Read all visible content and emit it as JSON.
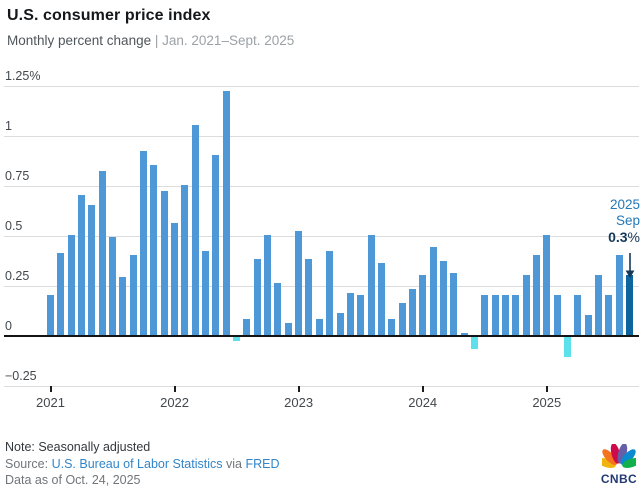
{
  "header": {
    "title": "U.S. consumer price index",
    "subtitle_main": "Monthly percent change",
    "subtitle_sep": "|",
    "subtitle_range": "Jan. 2021–Sept. 2025"
  },
  "annotation": {
    "line1": "2025",
    "line2": "Sep",
    "value": "0.3",
    "value_suffix": "%"
  },
  "footer": {
    "note": "Note: Seasonally adjusted",
    "source_prefix": "Source:",
    "source_link": "U.S. Bureau of Labor Statistics",
    "source_via": "via",
    "source_link2": "FRED",
    "data_as_of": "Data as of Oct. 24, 2025"
  },
  "logo": {
    "text": "CNBC",
    "icon": "nbc-peacock-icon"
  },
  "colors": {
    "bar": "#4f98d8",
    "bar_negative": "#5ce0eb",
    "bar_highlight": "#0e649f",
    "annotation_blue": "#2478b8",
    "annotation_dark": "#15395a",
    "link_blue": "#3286c8",
    "grid": "#dadcdd",
    "zero_line": "#121416"
  },
  "chart_data": {
    "type": "bar",
    "title": "U.S. consumer price index",
    "xlabel": "",
    "ylabel": "Monthly percent change",
    "ylim": [
      -0.25,
      1.25
    ],
    "grid": true,
    "legend": false,
    "yticks": [
      {
        "label": "1.25%",
        "value": 1.25
      },
      {
        "label": "1",
        "value": 1.0
      },
      {
        "label": "0.75",
        "value": 0.75
      },
      {
        "label": "0.5",
        "value": 0.5
      },
      {
        "label": "0.25",
        "value": 0.25
      },
      {
        "label": "0",
        "value": 0
      },
      {
        "label": "−0.25",
        "value": -0.25
      }
    ],
    "xticks": [
      "2021",
      "2022",
      "2023",
      "2024",
      "2025"
    ],
    "xtick_month_index": [
      0,
      12,
      24,
      36,
      48
    ],
    "months": [
      "2021-01",
      "2021-02",
      "2021-03",
      "2021-04",
      "2021-05",
      "2021-06",
      "2021-07",
      "2021-08",
      "2021-09",
      "2021-10",
      "2021-11",
      "2021-12",
      "2022-01",
      "2022-02",
      "2022-03",
      "2022-04",
      "2022-05",
      "2022-06",
      "2022-07",
      "2022-08",
      "2022-09",
      "2022-10",
      "2022-11",
      "2022-12",
      "2023-01",
      "2023-02",
      "2023-03",
      "2023-04",
      "2023-05",
      "2023-06",
      "2023-07",
      "2023-08",
      "2023-09",
      "2023-10",
      "2023-11",
      "2023-12",
      "2024-01",
      "2024-02",
      "2024-03",
      "2024-04",
      "2024-05",
      "2024-06",
      "2024-07",
      "2024-08",
      "2024-09",
      "2024-10",
      "2024-11",
      "2024-12",
      "2025-01",
      "2025-02",
      "2025-03",
      "2025-04",
      "2025-05",
      "2025-06",
      "2025-07",
      "2025-08",
      "2025-09"
    ],
    "values": [
      0.2,
      0.41,
      0.5,
      0.7,
      0.65,
      0.82,
      0.49,
      0.29,
      0.4,
      0.92,
      0.85,
      0.72,
      0.56,
      0.75,
      1.05,
      0.42,
      0.9,
      1.22,
      -0.02,
      0.08,
      0.38,
      0.5,
      0.26,
      0.06,
      0.52,
      0.38,
      0.08,
      0.42,
      0.11,
      0.21,
      0.2,
      0.5,
      0.36,
      0.08,
      0.16,
      0.23,
      0.3,
      0.44,
      0.37,
      0.31,
      0.01,
      -0.06,
      0.2,
      0.2,
      0.2,
      0.2,
      0.3,
      0.4,
      0.5,
      0.2,
      -0.1,
      0.2,
      0.1,
      0.3,
      0.2,
      0.4,
      0.3
    ],
    "highlight_index": 56,
    "bar_color": "#4f98d8",
    "negative_color": "#5ce0eb",
    "highlight_color": "#0e649f"
  }
}
